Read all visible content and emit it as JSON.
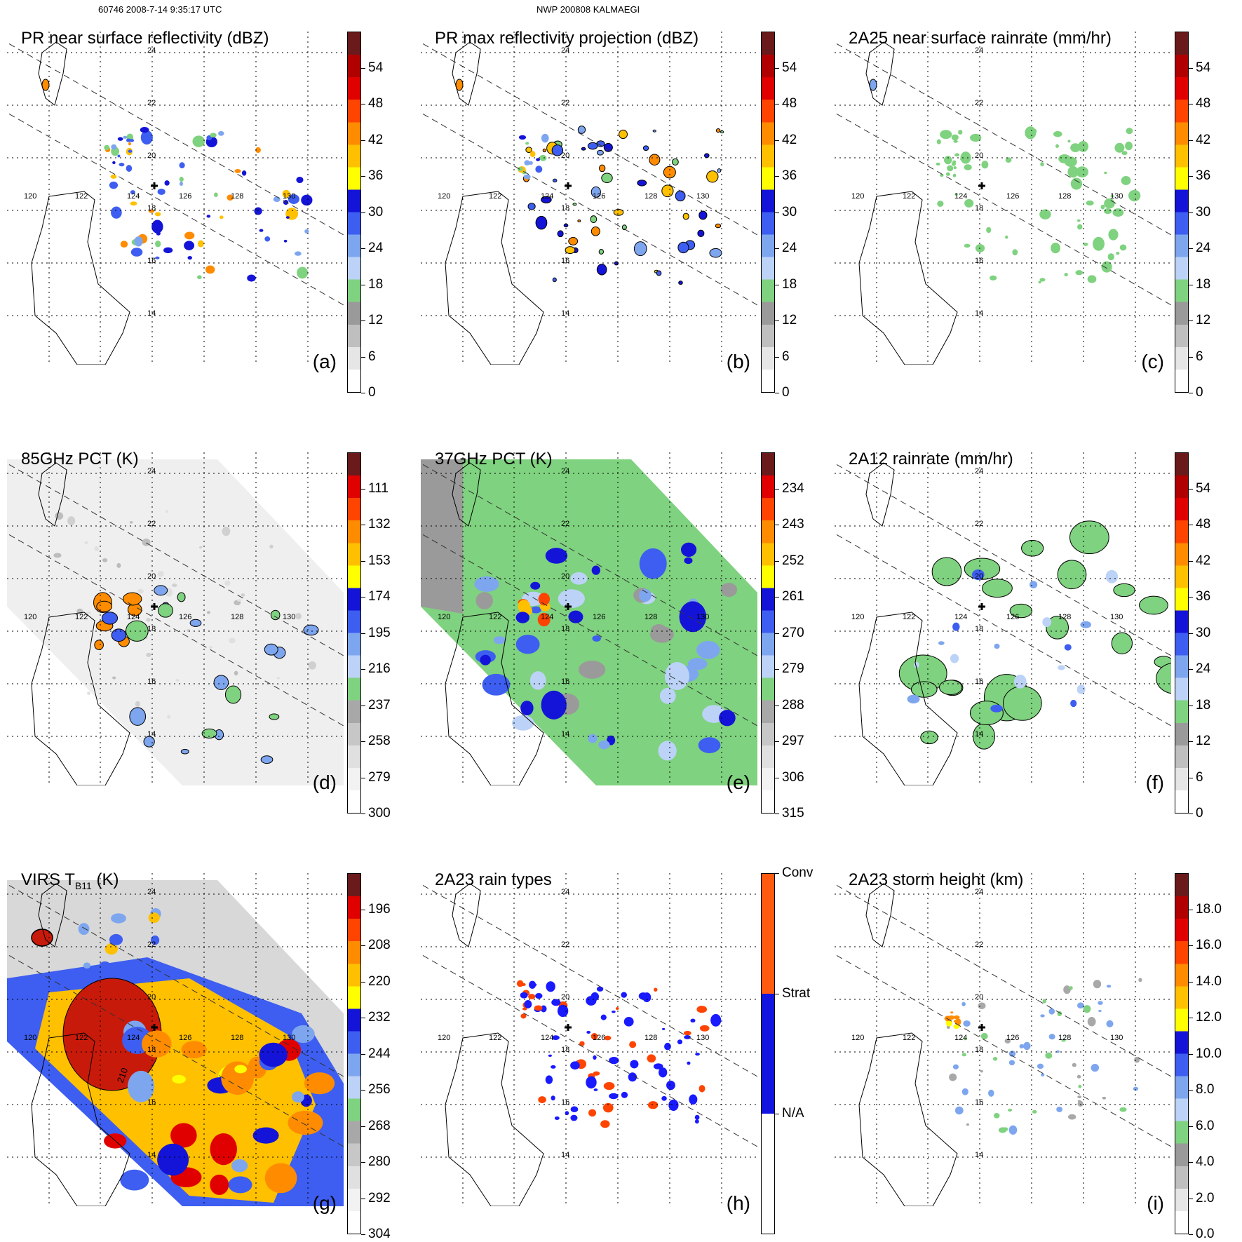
{
  "header": {
    "left": "60746 2008-7-14 9:35:17 UTC",
    "center": "NWP 200808 KALMAEGI"
  },
  "lat_labels": [
    "24",
    "22",
    "20",
    "18",
    "16",
    "14"
  ],
  "lon_labels": [
    "120",
    "122",
    "124",
    "126",
    "128",
    "130"
  ],
  "panels": [
    {
      "id": "a",
      "title": "PR near surface reflectivity (dBZ)",
      "label": "(a)",
      "colorbar": [
        "54",
        "48",
        "42",
        "36",
        "30",
        "24",
        "18",
        "12",
        "6",
        "0"
      ],
      "field": "swath-narrow"
    },
    {
      "id": "b",
      "title": "PR max reflectivity projection (dBZ)",
      "label": "(b)",
      "colorbar": [
        "54",
        "48",
        "42",
        "36",
        "30",
        "24",
        "18",
        "12",
        "6",
        "0"
      ],
      "field": "swath-narrow"
    },
    {
      "id": "c",
      "title": "2A25 near surface rainrate (mm/hr)",
      "label": "(c)",
      "colorbar": [
        "54",
        "48",
        "42",
        "36",
        "30",
        "24",
        "18",
        "12",
        "6",
        "0"
      ],
      "field": "swath-narrow"
    },
    {
      "id": "d",
      "title": "85GHz PCT (K)",
      "label": "(d)",
      "colorbar": [
        "111",
        "132",
        "153",
        "174",
        "195",
        "216",
        "237",
        "258",
        "279",
        "300"
      ],
      "field": "wide-gray"
    },
    {
      "id": "e",
      "title": "37GHz PCT (K)",
      "label": "(e)",
      "colorbar": [
        "234",
        "243",
        "252",
        "261",
        "270",
        "279",
        "288",
        "297",
        "306",
        "315"
      ],
      "field": "wide-green"
    },
    {
      "id": "f",
      "title": "2A12 rainrate (mm/hr)",
      "label": "(f)",
      "colorbar": [
        "54",
        "48",
        "42",
        "36",
        "30",
        "24",
        "18",
        "12",
        "6",
        "0"
      ],
      "field": "wide-patches"
    },
    {
      "id": "g",
      "title": "VIRS T",
      "title_sub": "B11",
      "title_suffix": " (K)",
      "label": "(g)",
      "colorbar": [
        "196",
        "208",
        "220",
        "232",
        "244",
        "256",
        "268",
        "280",
        "292",
        "304"
      ],
      "field": "wide-ir",
      "contour_label": "210"
    },
    {
      "id": "h",
      "title": "2A23 rain types",
      "label": "(h)",
      "colorbar": [
        "Conv",
        "Strat",
        "N/A"
      ],
      "field": "swath-types"
    },
    {
      "id": "i",
      "title": "2A23 storm height (km)",
      "label": "(i)",
      "colorbar": [
        "18.0",
        "16.0",
        "14.0",
        "12.0",
        "10.0",
        "8.0",
        "6.0",
        "4.0",
        "2.0",
        "0.0"
      ],
      "field": "swath-height"
    }
  ]
}
